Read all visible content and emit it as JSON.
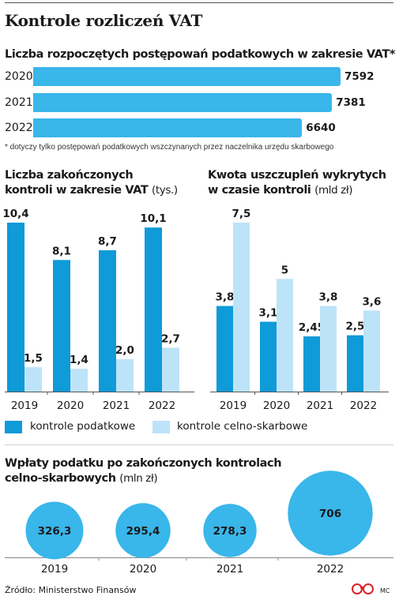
{
  "title": "Kontrole rozliczeń VAT",
  "section1": {
    "title": "Liczba rozpoczętych postępowań podatkowych w zakresie VAT*",
    "bars": [
      {
        "year": "2020",
        "value": 7592
      },
      {
        "year": "2021",
        "value": 7381
      },
      {
        "year": "2022",
        "value": 6640
      }
    ],
    "footnote": "* dotyczy tylko postępowań podatkowych wszczynanych przez naczelnika urzędu skarbowego"
  },
  "chart_left": {
    "title_line1": "Liczba zakończonych",
    "title_line2": "kontroli w zakresie VAT",
    "unit": "(tys.)"
  },
  "chart_right": {
    "title_line1": "Kwota uszczupleń wykrytych",
    "title_line2": "w czasie kontroli",
    "unit": "(mld zł)"
  },
  "legend": {
    "item1": "kontrole podatkowe",
    "item2": "kontrole celno-skarbowe"
  },
  "section3": {
    "title_line1": "Wpłaty podatku po zakończonych kontrolach",
    "title_line2": "celno-skarbowych",
    "unit": "(mln zł)"
  },
  "colors": {
    "dark": "#0f9ad8",
    "light": "#bde3f8",
    "hbar": "#39b6ea",
    "bubble": "#39b6ea"
  },
  "source": "Źródło: Ministerstwo Finansów",
  "credit": "MC",
  "chart_data": [
    {
      "type": "bar",
      "title": "Liczba rozpoczętych postępowań podatkowych w zakresie VAT*",
      "orientation": "horizontal",
      "categories": [
        "2020",
        "2021",
        "2022"
      ],
      "values": [
        7592,
        7381,
        6640
      ]
    },
    {
      "type": "bar",
      "title": "Liczba zakończonych kontroli w zakresie VAT (tys.)",
      "categories": [
        "2019",
        "2020",
        "2021",
        "2022"
      ],
      "series": [
        {
          "name": "kontrole podatkowe",
          "values": [
            10.4,
            8.1,
            8.7,
            10.1
          ],
          "labels": [
            "10,4",
            "8,1",
            "8,7",
            "10,1"
          ]
        },
        {
          "name": "kontrole celno-skarbowe",
          "values": [
            1.5,
            1.4,
            2.0,
            2.7
          ],
          "labels": [
            "1,5",
            "1,4",
            "2,0",
            "2,7"
          ]
        }
      ],
      "ylim": [
        0,
        10.4
      ]
    },
    {
      "type": "bar",
      "title": "Kwota uszczupleń wykrytych w czasie kontroli (mld zł)",
      "categories": [
        "2019",
        "2020",
        "2021",
        "2022"
      ],
      "series": [
        {
          "name": "kontrole podatkowe",
          "values": [
            3.8,
            3.1,
            2.45,
            2.5
          ],
          "labels": [
            "3,8",
            "3,1",
            "2,45",
            "2,5"
          ]
        },
        {
          "name": "kontrole celno-skarbowe",
          "values": [
            7.5,
            5,
            3.8,
            3.6
          ],
          "labels": [
            "7,5",
            "5",
            "3,8",
            "3,6"
          ]
        }
      ],
      "ylim": [
        0,
        7.5
      ]
    },
    {
      "type": "scatter",
      "title": "Wpłaty podatku po zakończonych kontrolach celno-skarbowych (mln zł)",
      "categories": [
        "2019",
        "2020",
        "2021",
        "2022"
      ],
      "values": [
        326.3,
        295.4,
        278.3,
        706
      ],
      "labels": [
        "326,3",
        "295,4",
        "278,3",
        "706"
      ]
    }
  ]
}
